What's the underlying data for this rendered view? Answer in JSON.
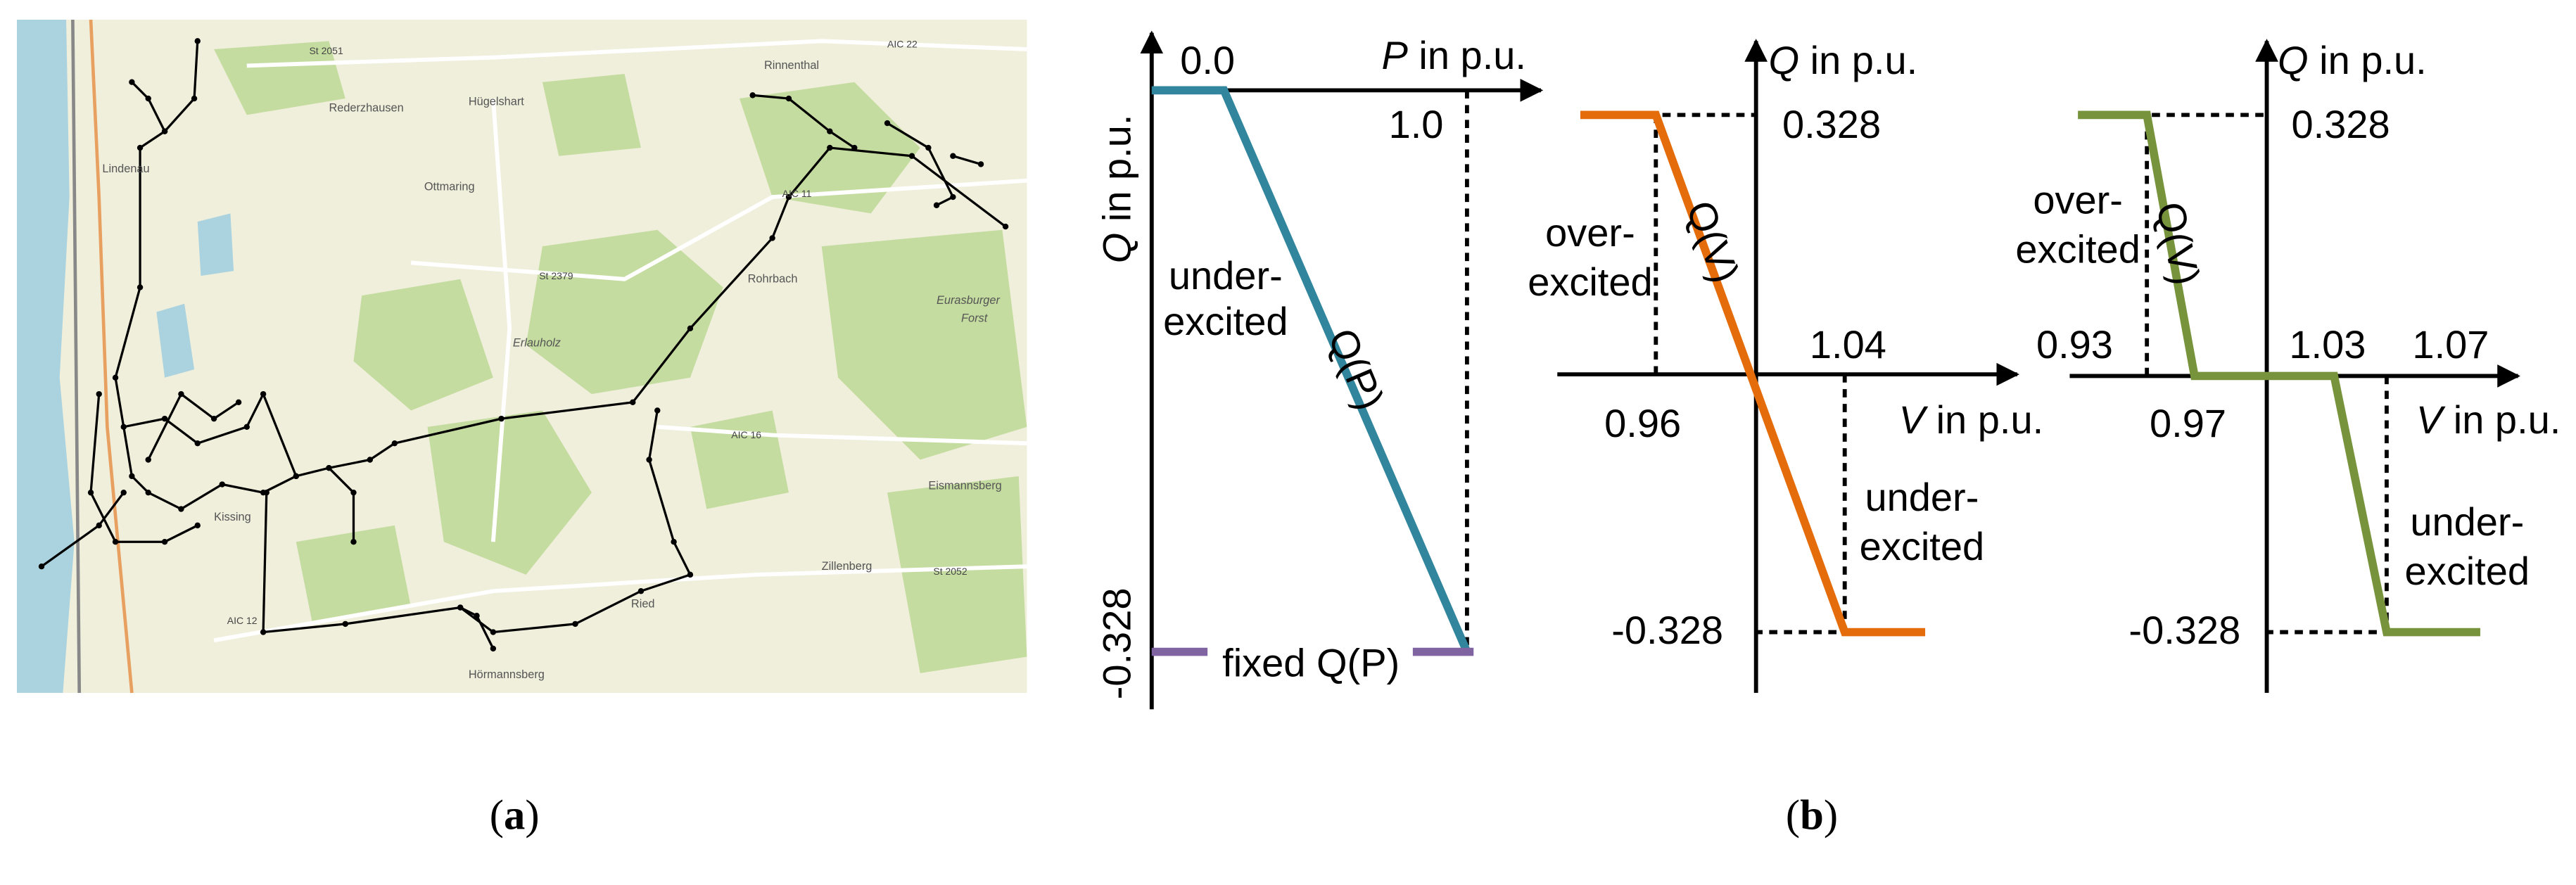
{
  "panel_a": {
    "label_open": "(",
    "label_letter": "a",
    "label_close": ")",
    "map_labels": [
      "St 2051",
      "Rederzhausen",
      "Hügelshart",
      "AIC 22",
      "Rinnenthal",
      "Ottmaring",
      "AIC 11",
      "St 2379",
      "Rohrbach",
      "Eurasburger",
      "Forst",
      "AIC 16",
      "Eismannsberg",
      "Kissing",
      "Zillenberg",
      "St 2052",
      "AIC 12",
      "Hörmannsberg",
      "Lindenau",
      "Ried",
      "Erlauholz"
    ]
  },
  "panel_b": {
    "label_open": "(",
    "label_letter": "b",
    "label_close": ")",
    "qp": {
      "x_axis_symbol": "P",
      "x_axis_unit": " in p.u.",
      "y_axis_symbol": "Q",
      "y_axis_unit": " in p.u.",
      "origin_label": "0.0",
      "p_max_label": "1.0",
      "q_min_label": "-0.328",
      "region_line1": "under-",
      "region_line2": "excited",
      "curve_label": "Q(P)",
      "fixed_label": "fixed Q(P)"
    },
    "qv1": {
      "x_axis_symbol": "V",
      "x_axis_unit": " in p.u.",
      "y_axis_symbol": "Q",
      "y_axis_unit": " in p.u.",
      "q_max_label": "0.328",
      "q_min_label": "-0.328",
      "v_low_label": "0.96",
      "v_high_label": "1.04",
      "over_line1": "over-",
      "over_line2": "excited",
      "under_line1": "under-",
      "under_line2": "excited",
      "curve_label": "Q(V)"
    },
    "qv2": {
      "x_axis_symbol": "V",
      "x_axis_unit": " in p.u.",
      "y_axis_symbol": "Q",
      "y_axis_unit": " in p.u.",
      "q_max_label": "0.328",
      "q_min_label": "-0.328",
      "v1_label": "0.93",
      "v2_label": "0.97",
      "v3_label": "1.03",
      "v4_label": "1.07",
      "over_line1": "over-",
      "over_line2": "excited",
      "under_line1": "under-",
      "under_line2": "excited",
      "curve_label": "Q(V)"
    }
  }
}
